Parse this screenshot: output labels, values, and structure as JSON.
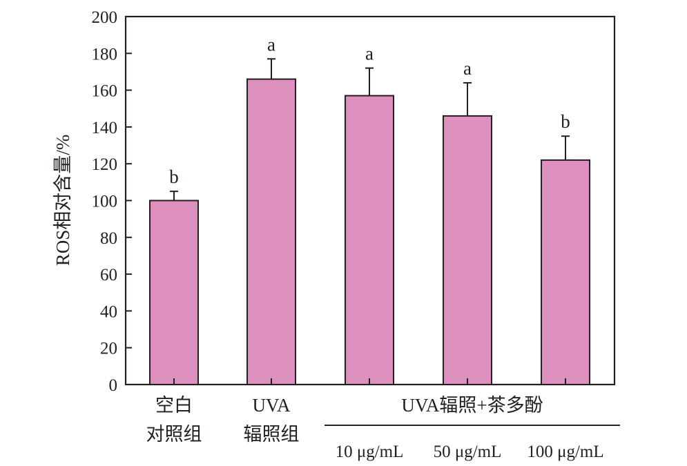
{
  "chart_data": {
    "type": "bar",
    "ylabel": "ROS相对含量/%",
    "ylim": [
      0,
      200
    ],
    "yticks": [
      "0",
      "20",
      "40",
      "60",
      "80",
      "100",
      "120",
      "140",
      "160",
      "180",
      "200"
    ],
    "ytick_values": [
      0,
      20,
      40,
      60,
      80,
      100,
      120,
      140,
      160,
      180,
      200
    ],
    "categories": [
      {
        "line1": "空白",
        "line2": "对照组"
      },
      {
        "line1": "UVA",
        "line2": "辐照组"
      },
      {
        "line1": "",
        "line2": "10 μg/mL"
      },
      {
        "line1": "",
        "line2": "50 μg/mL"
      },
      {
        "line1": "",
        "line2": "100 μg/mL"
      }
    ],
    "group_label": "UVA辐照+茶多酚",
    "values": [
      100,
      166,
      157,
      146,
      122
    ],
    "errors": [
      5,
      11,
      15,
      18,
      13
    ],
    "significance": [
      "b",
      "a",
      "a",
      "a",
      "b"
    ],
    "bar_color": "#dd8fbd",
    "grid": false
  }
}
